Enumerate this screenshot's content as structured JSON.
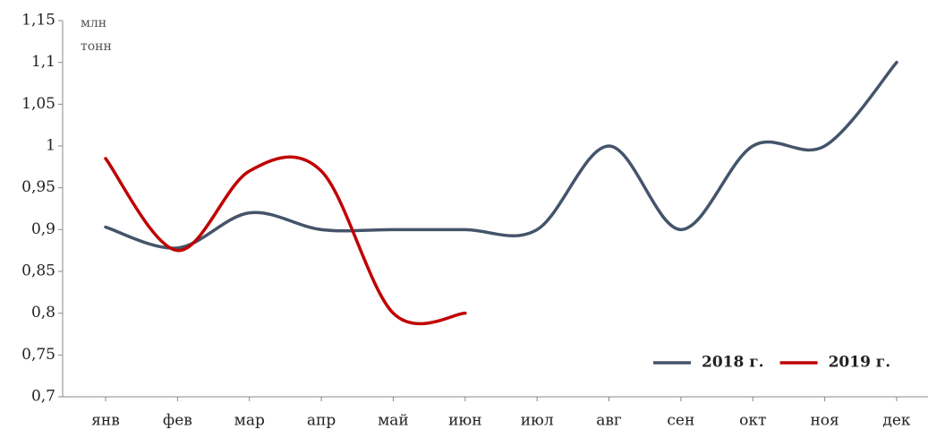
{
  "chart_data": {
    "type": "line",
    "y_label_lines": [
      "млн",
      "тонн"
    ],
    "categories": [
      "янв",
      "фев",
      "мар",
      "апр",
      "май",
      "июн",
      "июл",
      "авг",
      "сен",
      "окт",
      "ноя",
      "дек"
    ],
    "series": [
      {
        "name": "2018 г.",
        "color": "#44546a",
        "values": [
          0.903,
          0.878,
          0.92,
          0.9,
          0.9,
          0.9,
          0.9,
          1.0,
          0.9,
          1.0,
          1.0,
          1.1
        ]
      },
      {
        "name": "2019 г.",
        "color": "#c00000",
        "values": [
          0.985,
          0.875,
          0.97,
          0.97,
          0.8,
          0.8,
          null,
          null,
          null,
          null,
          null,
          null
        ]
      }
    ],
    "ylim": [
      0.7,
      1.15
    ],
    "yticks": [
      {
        "value": 0.7,
        "label": "0,7"
      },
      {
        "value": 0.75,
        "label": "0,75"
      },
      {
        "value": 0.8,
        "label": "0,8"
      },
      {
        "value": 0.85,
        "label": "0,85"
      },
      {
        "value": 0.9,
        "label": "0,9"
      },
      {
        "value": 0.95,
        "label": "0,95"
      },
      1,
      {
        "value": 1.05,
        "label": "1,05"
      },
      {
        "value": 1.1,
        "label": "1,1"
      },
      {
        "value": 1.15,
        "label": "1,15"
      }
    ],
    "legend": "lower right"
  }
}
